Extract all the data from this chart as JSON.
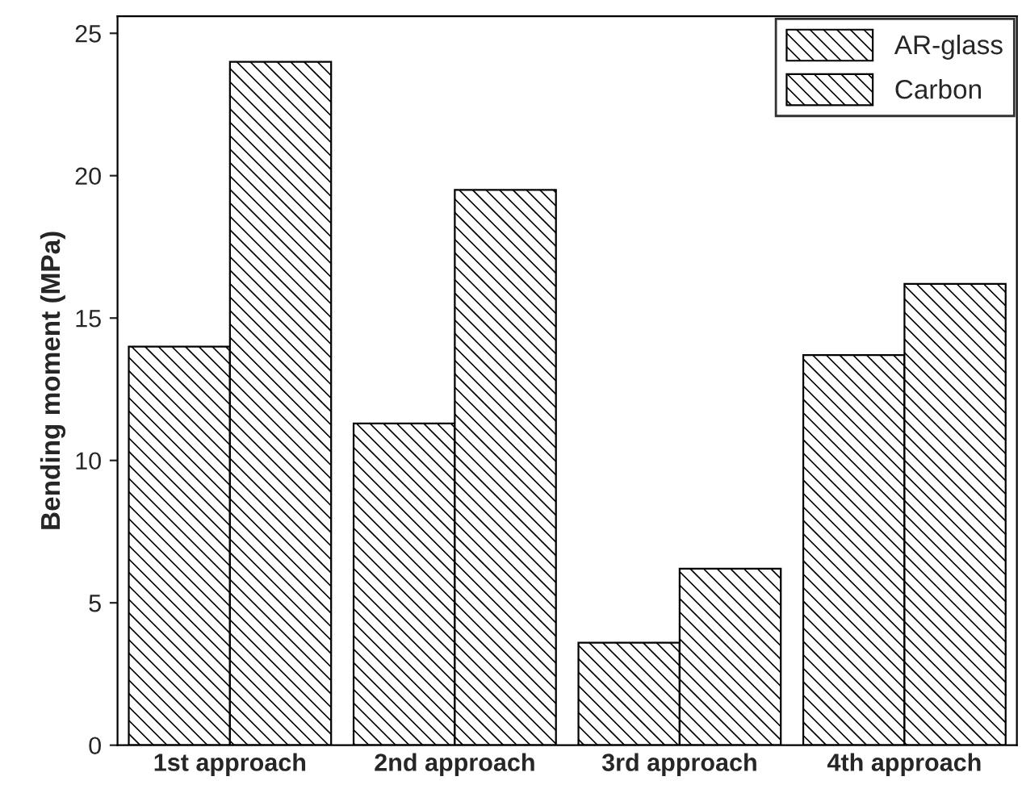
{
  "chart_data": {
    "type": "bar",
    "ylabel": "Bending moment (MPa)",
    "categories": [
      "1st approach",
      "2nd approach",
      "3rd approach",
      "4th approach"
    ],
    "series": [
      {
        "name": "AR-glass",
        "color": "#000000",
        "values": [
          14,
          11.3,
          3.6,
          13.7
        ]
      },
      {
        "name": "Carbon",
        "color": "#000000",
        "values": [
          24,
          19.5,
          6.2,
          16.2
        ]
      }
    ],
    "ylim": [
      0,
      25.6
    ],
    "yticks": [
      0,
      5,
      10,
      15,
      20,
      25
    ],
    "grid": false,
    "legend": "top right"
  }
}
